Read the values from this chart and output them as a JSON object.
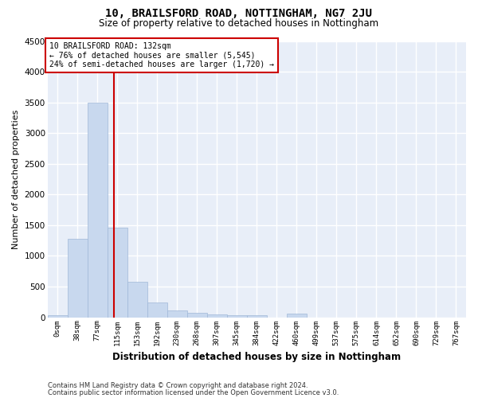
{
  "title": "10, BRAILSFORD ROAD, NOTTINGHAM, NG7 2JU",
  "subtitle": "Size of property relative to detached houses in Nottingham",
  "xlabel": "Distribution of detached houses by size in Nottingham",
  "ylabel": "Number of detached properties",
  "bar_color": "#c8d8ee",
  "bar_edge_color": "#a0b8d8",
  "background_color": "#e8eef8",
  "grid_color": "#ffffff",
  "categories": [
    "0sqm",
    "38sqm",
    "77sqm",
    "115sqm",
    "153sqm",
    "192sqm",
    "230sqm",
    "268sqm",
    "307sqm",
    "345sqm",
    "384sqm",
    "422sqm",
    "460sqm",
    "499sqm",
    "537sqm",
    "575sqm",
    "614sqm",
    "652sqm",
    "690sqm",
    "729sqm",
    "767sqm"
  ],
  "values": [
    30,
    1275,
    3500,
    1460,
    580,
    240,
    110,
    75,
    50,
    35,
    30,
    0,
    55,
    0,
    0,
    0,
    0,
    0,
    0,
    0,
    0
  ],
  "ylim": [
    0,
    4500
  ],
  "yticks": [
    0,
    500,
    1000,
    1500,
    2000,
    2500,
    3000,
    3500,
    4000,
    4500
  ],
  "vline_index": 2.85,
  "annotation_text": "10 BRAILSFORD ROAD: 132sqm\n← 76% of detached houses are smaller (5,545)\n24% of semi-detached houses are larger (1,720) →",
  "annotation_box_color": "#ffffff",
  "annotation_box_edge_color": "#cc0000",
  "vline_color": "#cc0000",
  "footer1": "Contains HM Land Registry data © Crown copyright and database right 2024.",
  "footer2": "Contains public sector information licensed under the Open Government Licence v3.0."
}
